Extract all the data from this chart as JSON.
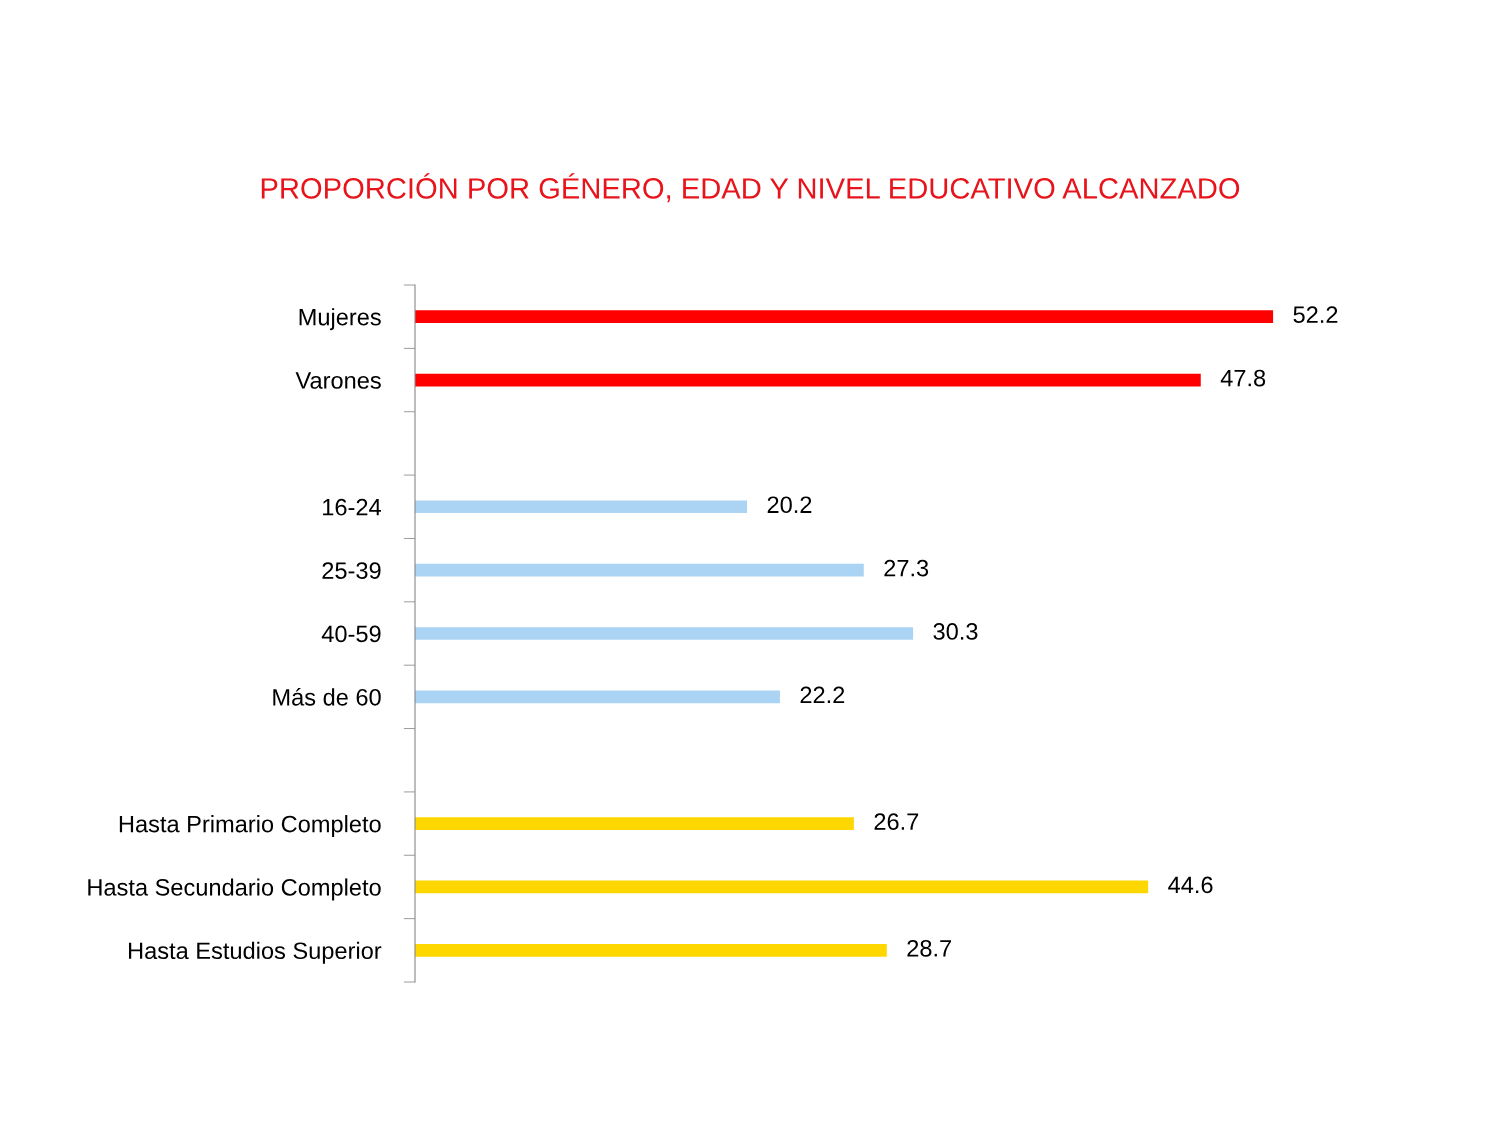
{
  "chart_data": {
    "type": "bar",
    "orientation": "horizontal",
    "title": "PROPORCIÓN POR GÉNERO, EDAD Y NIVEL EDUCATIVO ALCANZADO",
    "categories": [
      "Mujeres",
      "Varones",
      null,
      "16-24",
      "25-39",
      "40-59",
      "Más de 60",
      null,
      "Hasta Primario Completo",
      "Hasta Secundario Completo",
      "Hasta Estudios Superior"
    ],
    "values": [
      52.2,
      47.8,
      null,
      20.2,
      27.3,
      30.3,
      22.2,
      null,
      26.7,
      44.6,
      28.7
    ],
    "colors": [
      "#ff0000",
      "#ff0000",
      null,
      "#abd3f3",
      "#abd3f3",
      "#abd3f3",
      "#abd3f3",
      null,
      "#ffd700",
      "#ffd700",
      "#ffd700"
    ],
    "data_labels": true,
    "grid": false,
    "legend": false,
    "tick_labels": "y"
  }
}
